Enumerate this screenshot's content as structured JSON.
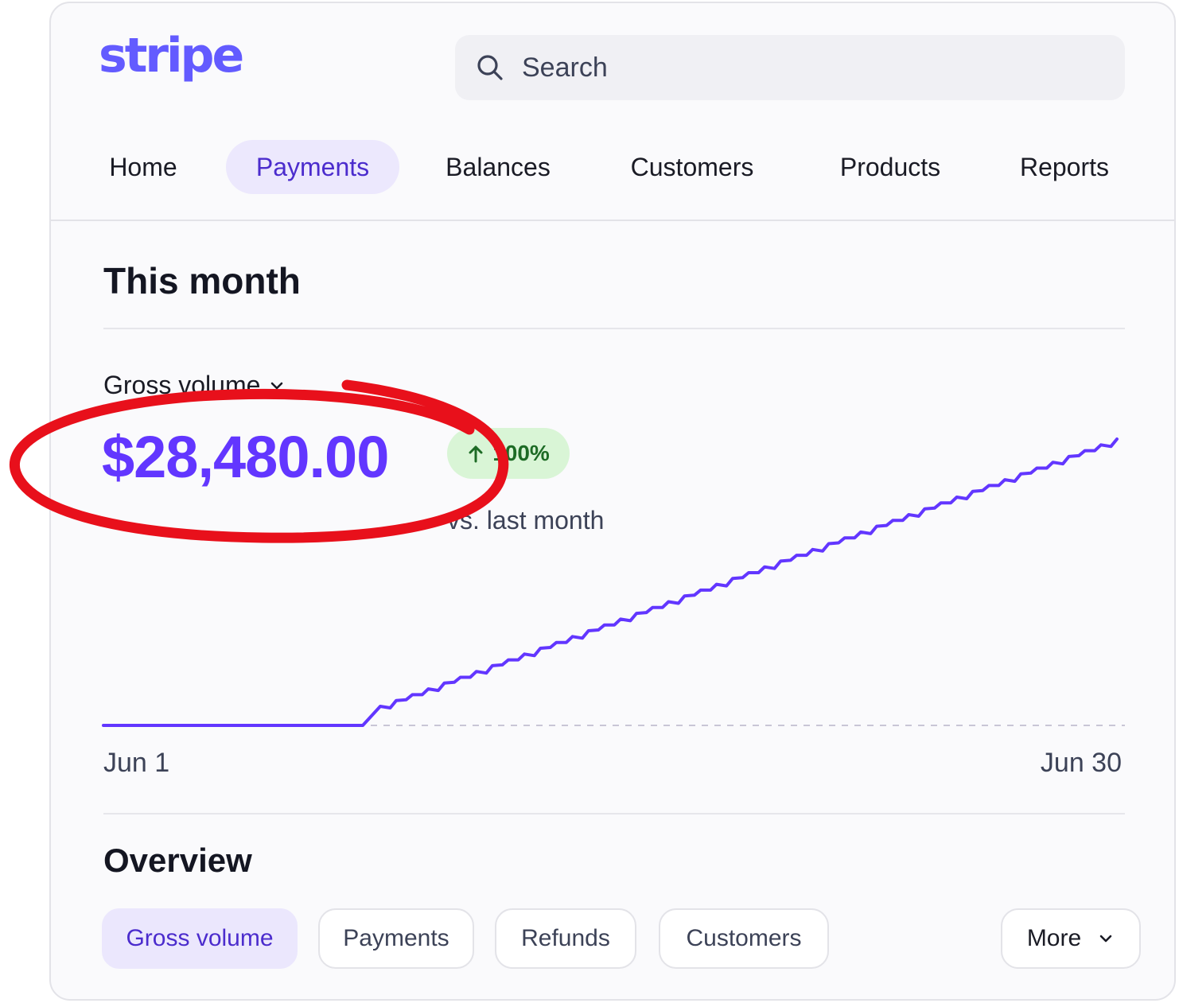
{
  "brand": {
    "logo_text": "stripe",
    "accent": "#635bff"
  },
  "search": {
    "placeholder": "Search",
    "icon": "search-icon"
  },
  "nav": {
    "items": [
      {
        "label": "Home",
        "active": false
      },
      {
        "label": "Payments",
        "active": true
      },
      {
        "label": "Balances",
        "active": false
      },
      {
        "label": "Customers",
        "active": false
      },
      {
        "label": "Products",
        "active": false
      },
      {
        "label": "Reports",
        "active": false
      }
    ]
  },
  "month": {
    "title": "This month",
    "metric_label": "Gross volume",
    "amount": "$28,480.00",
    "change": "100%",
    "change_direction": "up",
    "comparison": "vs. last month",
    "start_date": "Jun 1",
    "end_date": "Jun 30"
  },
  "chart_data": {
    "type": "line",
    "line_color": "#6236ff",
    "x_range": [
      "Jun 1",
      "Jun 30"
    ],
    "grid": false,
    "baseline": "dashed"
  },
  "overview": {
    "title": "Overview",
    "tabs": [
      {
        "label": "Gross volume",
        "active": true
      },
      {
        "label": "Payments",
        "active": false
      },
      {
        "label": "Refunds",
        "active": false
      },
      {
        "label": "Customers",
        "active": false
      }
    ],
    "more_label": "More"
  },
  "annotation": {
    "color": "#e8101b",
    "shape": "ellipse"
  }
}
